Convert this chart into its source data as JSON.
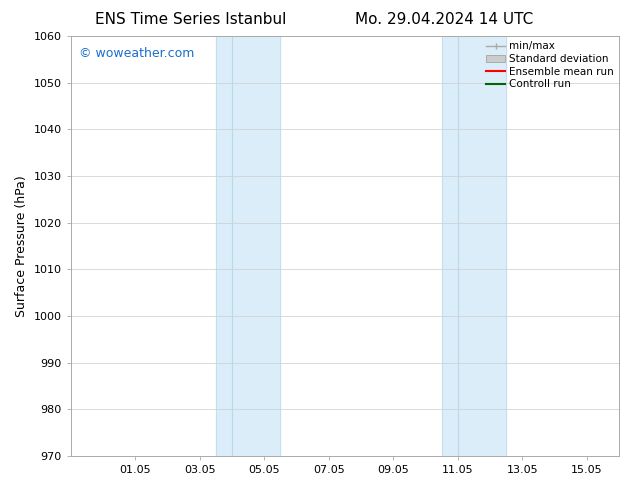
{
  "title_left": "ENS Time Series Istanbul",
  "title_right": "Mo. 29.04.2024 14 UTC",
  "ylabel": "Surface Pressure (hPa)",
  "ylim": [
    970,
    1060
  ],
  "yticks": [
    970,
    980,
    990,
    1000,
    1010,
    1020,
    1030,
    1040,
    1050,
    1060
  ],
  "xtick_labels": [
    "01.05",
    "03.05",
    "05.05",
    "07.05",
    "09.05",
    "11.05",
    "13.05",
    "15.05"
  ],
  "xtick_positions": [
    2,
    4,
    6,
    8,
    10,
    12,
    14,
    16
  ],
  "x_min": 0,
  "x_max": 17,
  "shade_band1_x0": 4.5,
  "shade_band1_x1": 5.0,
  "shade_band1b_x0": 5.0,
  "shade_band1b_x1": 6.5,
  "shade_band2_x0": 11.5,
  "shade_band2_x1": 12.0,
  "shade_band2b_x0": 12.0,
  "shade_band2b_x1": 13.5,
  "shade_color": "#daedf8",
  "watermark": "© woweather.com",
  "watermark_color": "#1a6fcc",
  "legend_labels": [
    "min/max",
    "Standard deviation",
    "Ensemble mean run",
    "Controll run"
  ],
  "legend_colors": [
    "#aaaaaa",
    "#cccccc",
    "#ff0000",
    "#006600"
  ],
  "bg_color": "#ffffff",
  "grid_color": "#cccccc",
  "title_fontsize": 11,
  "ylabel_fontsize": 9,
  "tick_fontsize": 8,
  "watermark_fontsize": 9,
  "legend_fontsize": 7.5
}
